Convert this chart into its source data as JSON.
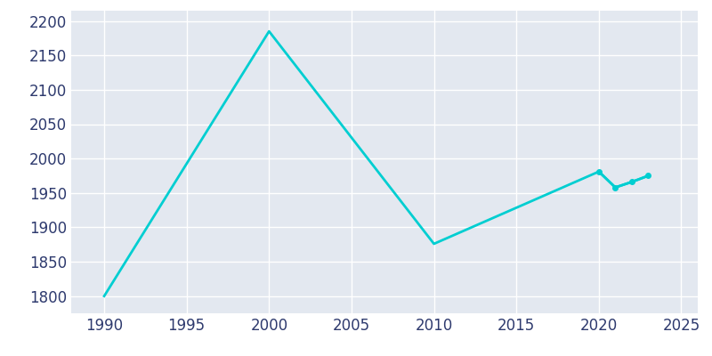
{
  "years": [
    1990,
    2000,
    2010,
    2020,
    2021,
    2022,
    2023
  ],
  "population": [
    1800,
    2185,
    1876,
    1981,
    1958,
    1966,
    1975
  ],
  "line_color": "#00CED1",
  "figure_background": "#FFFFFF",
  "axes_background": "#E3E8F0",
  "grid_color": "#FFFFFF",
  "text_color": "#2E3A6E",
  "xlim": [
    1988,
    2026
  ],
  "ylim": [
    1775,
    2215
  ],
  "xticks": [
    1990,
    1995,
    2000,
    2005,
    2010,
    2015,
    2020,
    2025
  ],
  "yticks": [
    1800,
    1850,
    1900,
    1950,
    2000,
    2050,
    2100,
    2150,
    2200
  ],
  "linewidth": 2.0,
  "marker_size": 4,
  "tick_labelsize": 12
}
